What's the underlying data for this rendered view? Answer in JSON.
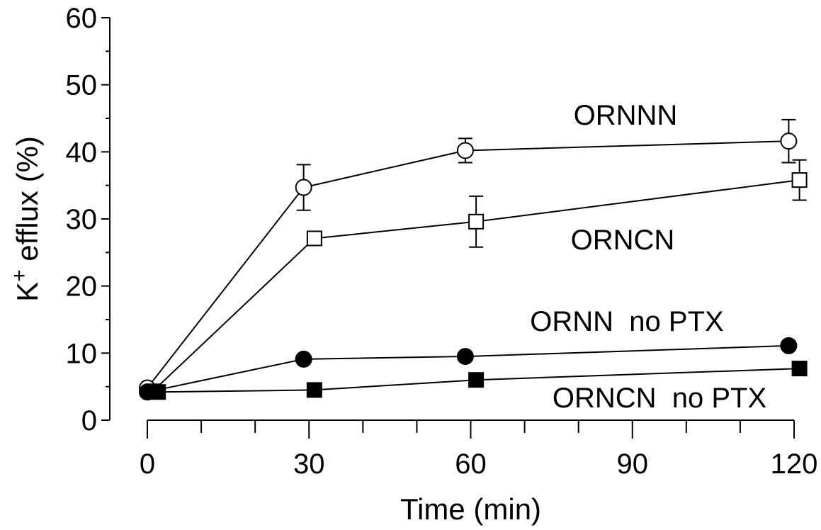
{
  "chart_data": {
    "type": "line",
    "xlabel": "Time (min)",
    "ylabel": {
      "base": "K",
      "superscript": "+",
      "rest": " efflux (%)"
    },
    "xlim": [
      0,
      120
    ],
    "ylim": [
      0,
      60
    ],
    "x_ticks": [
      0,
      30,
      60,
      90,
      120
    ],
    "x_minor_step": 10,
    "y_ticks": [
      0,
      10,
      20,
      30,
      40,
      50,
      60
    ],
    "y_minor_step": 5,
    "grid": false,
    "series": [
      {
        "name": "ORNNN",
        "marker": "open-circle",
        "points": [
          {
            "x": 0,
            "y": 4.8,
            "err": 0
          },
          {
            "x": 29,
            "y": 34.7,
            "err": 3.4
          },
          {
            "x": 59,
            "y": 40.2,
            "err": 1.8
          },
          {
            "x": 119,
            "y": 41.6,
            "err": 3.2
          }
        ]
      },
      {
        "name": "ORNCN",
        "marker": "open-square",
        "points": [
          {
            "x": 1,
            "y": 4.3,
            "err": 0
          },
          {
            "x": 31,
            "y": 27.1,
            "err": 0
          },
          {
            "x": 61,
            "y": 29.6,
            "err": 3.8
          },
          {
            "x": 121,
            "y": 35.8,
            "err": 3.0
          }
        ]
      },
      {
        "name": "ORNN  no PTX",
        "marker": "filled-circle",
        "points": [
          {
            "x": 0,
            "y": 4.2,
            "err": 0
          },
          {
            "x": 29,
            "y": 9.1,
            "err": 0
          },
          {
            "x": 59,
            "y": 9.5,
            "err": 0
          },
          {
            "x": 119,
            "y": 11.1,
            "err": 0
          }
        ]
      },
      {
        "name": "ORNCN  no PTX",
        "marker": "filled-square",
        "points": [
          {
            "x": 2,
            "y": 4.2,
            "err": 0
          },
          {
            "x": 31,
            "y": 4.5,
            "err": 0
          },
          {
            "x": 61,
            "y": 6.0,
            "err": 0
          },
          {
            "x": 121,
            "y": 7.7,
            "err": 0
          }
        ]
      }
    ]
  }
}
